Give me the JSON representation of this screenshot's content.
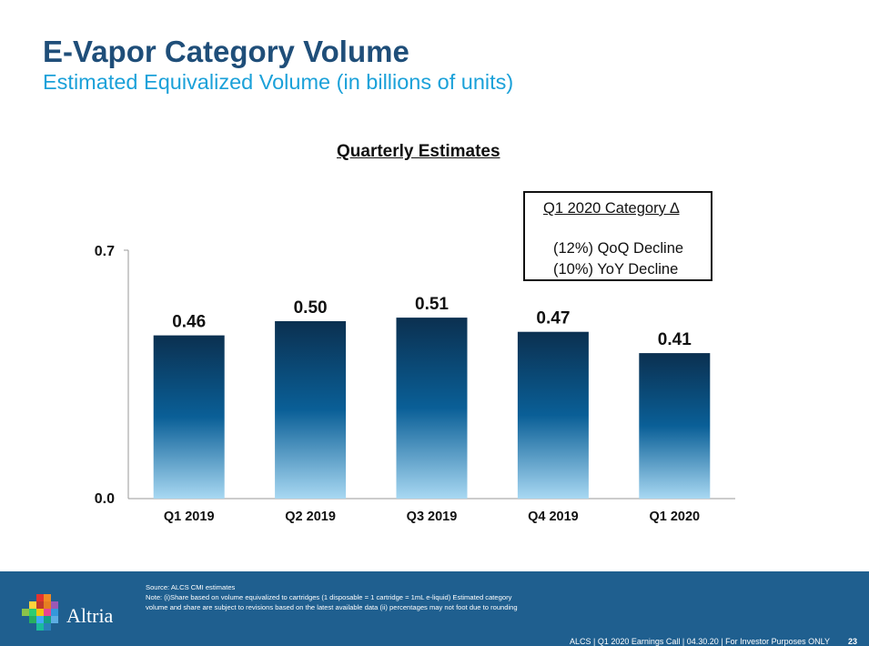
{
  "slide": {
    "title": "E-Vapor Category Volume",
    "subtitle": "Estimated Equivalized Volume (in billions of units)"
  },
  "chart_data": {
    "type": "bar",
    "title": "Quarterly Estimates",
    "categories": [
      "Q1 2019",
      "Q2 2019",
      "Q3 2019",
      "Q4 2019",
      "Q1 2020"
    ],
    "values": [
      0.46,
      0.5,
      0.51,
      0.47,
      0.41
    ],
    "data_labels": [
      "0.46",
      "0.50",
      "0.51",
      "0.47",
      "0.41"
    ],
    "ylim": [
      0,
      0.7
    ],
    "ytick_labels": [
      "0.0",
      "0.7"
    ],
    "xlabel": "",
    "ylabel": "",
    "grid": false,
    "bar_gradient": {
      "top": "#0b3050",
      "mid": "#0a5f97",
      "bottom": "#a8d8f2"
    }
  },
  "callout": {
    "heading": "Q1 2020 Category ∆",
    "line1": "(12%) QoQ Decline",
    "line2": "(10%)  YoY Decline"
  },
  "footer": {
    "logo_text": "Altria",
    "source": "Source: ALCS CMI estimates",
    "note_line1": "Note: (i)Share based on volume equivalized to cartridges (1 disposable = 1 cartridge = 1mL e-liquid) Estimated category",
    "note_line2": "volume and share are subject to revisions based on the latest available data (ii) percentages may not foot due to rounding",
    "bar_text": "ALCS | Q1 2020 Earnings Call | 04.30.20 | For Investor Purposes ONLY",
    "page_number": "23",
    "background": "#1f5f8f"
  }
}
